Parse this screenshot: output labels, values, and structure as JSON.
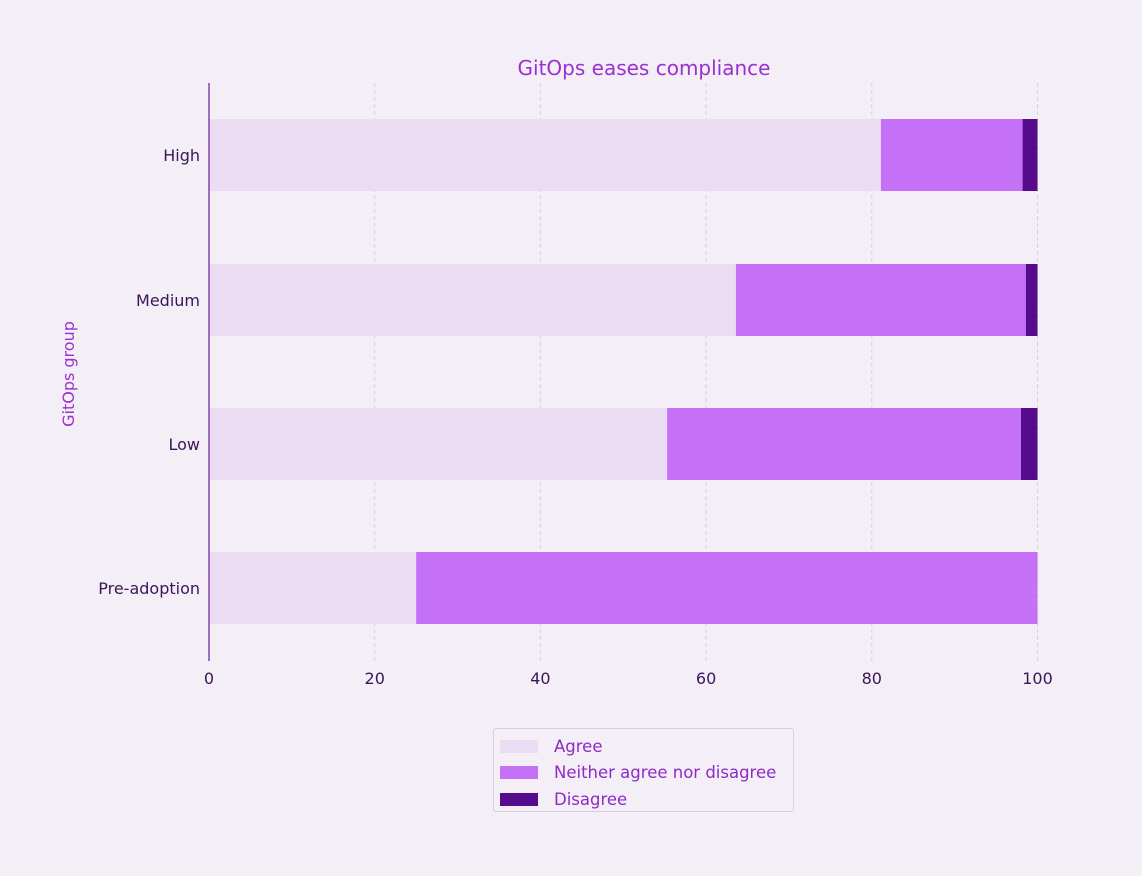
{
  "chart_data": {
    "type": "bar",
    "orientation": "horizontal",
    "stacked": true,
    "title": "GitOps eases compliance",
    "xlabel": "",
    "ylabel": "GitOps group",
    "categories": [
      "High",
      "Medium",
      "Low",
      "Pre-adoption"
    ],
    "series": [
      {
        "name": "Agree",
        "color": "#eadcf2",
        "values": [
          81.1,
          63.6,
          55.3,
          25.0
        ]
      },
      {
        "name": "Neither agree nor disagree",
        "color": "#c571f7",
        "values": [
          17.1,
          35.0,
          42.7,
          75.0
        ]
      },
      {
        "name": "Disagree",
        "color": "#560b8c",
        "values": [
          1.8,
          1.4,
          2.0,
          0
        ]
      }
    ],
    "xlim": [
      0,
      100
    ],
    "xticks": [
      "0",
      "20",
      "40",
      "60",
      "80",
      "100"
    ],
    "grid": "vertical dashed",
    "legend": "bottom-center"
  }
}
